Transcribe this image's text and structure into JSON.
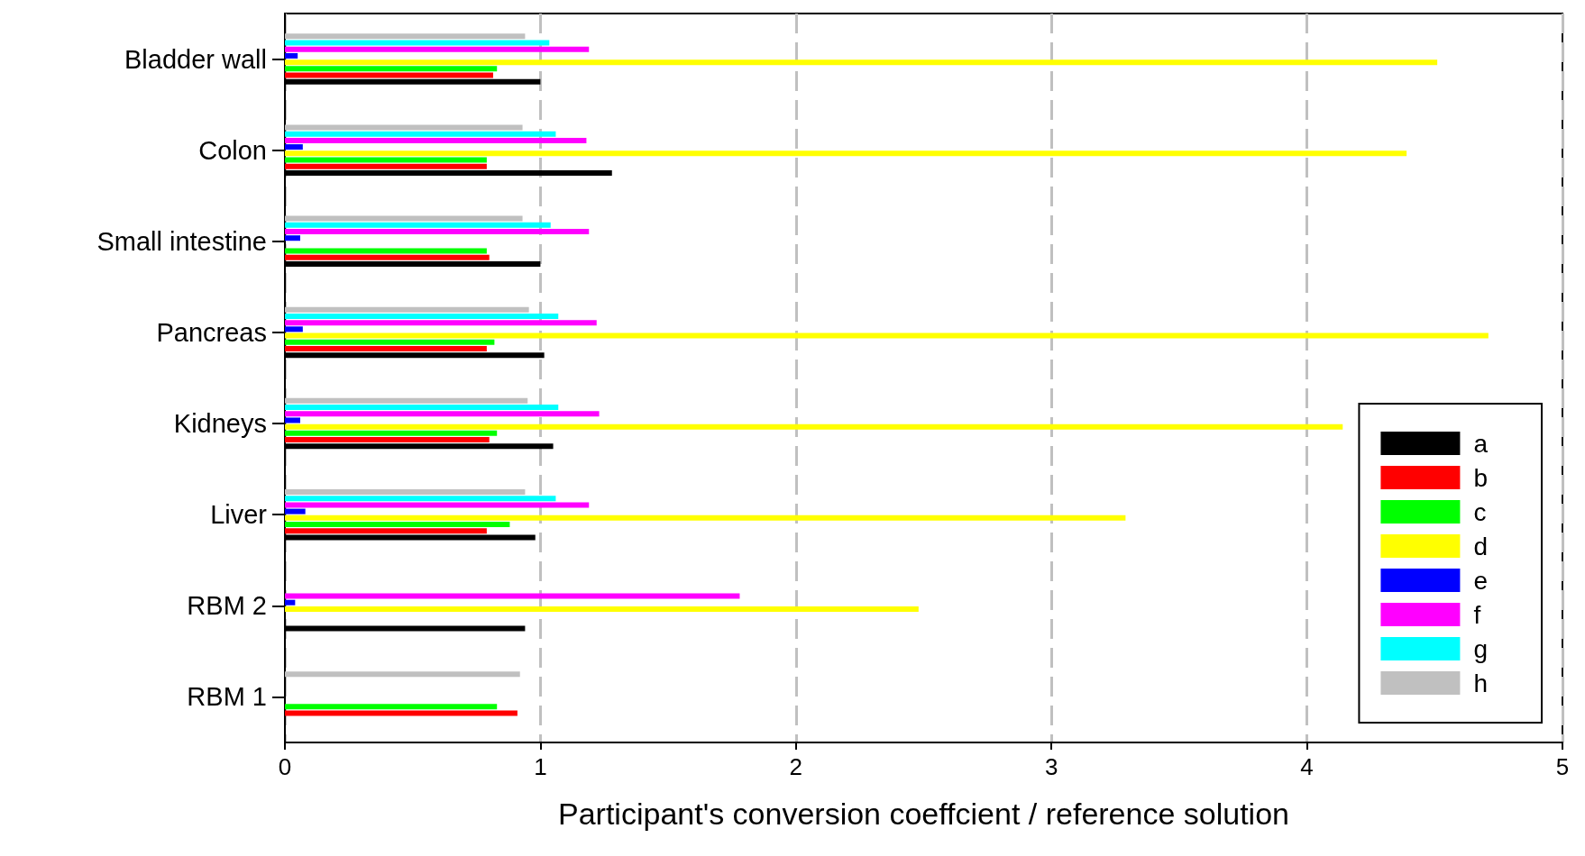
{
  "chart_data": {
    "type": "bar",
    "orientation": "horizontal",
    "xlabel": "Participant's conversion coeffcient / reference solution",
    "categories": [
      "Bladder wall",
      "Colon",
      "Small intestine",
      "Pancreas",
      "Kidneys",
      "Liver",
      "RBM 2",
      "RBM 1"
    ],
    "series": [
      {
        "name": "a",
        "color": "#000000",
        "values": [
          1.0,
          1.28,
          1.0,
          1.015,
          1.05,
          0.98,
          0.94,
          null
        ]
      },
      {
        "name": "b",
        "color": "#ff0000",
        "values": [
          0.815,
          0.79,
          0.8,
          0.79,
          0.8,
          0.79,
          null,
          0.91
        ]
      },
      {
        "name": "c",
        "color": "#00ff00",
        "values": [
          0.83,
          0.79,
          0.79,
          0.82,
          0.83,
          0.88,
          null,
          0.83
        ]
      },
      {
        "name": "d",
        "color": "#ffff00",
        "values": [
          4.51,
          4.39,
          null,
          4.71,
          4.14,
          3.29,
          2.48,
          null
        ]
      },
      {
        "name": "e",
        "color": "#0000ff",
        "values": [
          0.05,
          0.07,
          0.06,
          0.07,
          0.06,
          0.08,
          0.04,
          null
        ]
      },
      {
        "name": "f",
        "color": "#ff00ff",
        "values": [
          1.19,
          1.18,
          1.19,
          1.22,
          1.23,
          1.19,
          1.78,
          null
        ]
      },
      {
        "name": "g",
        "color": "#00ffff",
        "values": [
          1.035,
          1.06,
          1.04,
          1.07,
          1.07,
          1.06,
          null,
          null
        ]
      },
      {
        "name": "h",
        "color": "#c0c0c0",
        "values": [
          0.94,
          0.93,
          0.93,
          0.955,
          0.95,
          0.94,
          null,
          0.92
        ]
      }
    ],
    "xlim": [
      0,
      5
    ],
    "xticks": [
      0,
      1,
      2,
      3,
      4,
      5
    ],
    "grid": "x",
    "legend": "right"
  }
}
